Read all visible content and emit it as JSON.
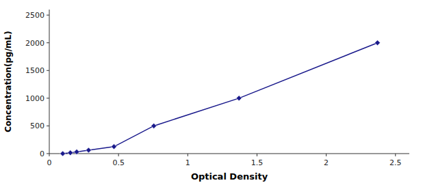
{
  "chart_data": {
    "type": "line",
    "x_label": "Optical Density",
    "y_label": "Concentration(pg/mL)",
    "x": [
      0.097,
      0.152,
      0.198,
      0.284,
      0.467,
      0.755,
      1.37,
      2.37
    ],
    "values": [
      0,
      15,
      31,
      62,
      125,
      500,
      1000,
      2000
    ],
    "color": "#1a1a8c",
    "marker": "diamond",
    "xlim": [
      0,
      2.6
    ],
    "ylim": [
      0,
      2600
    ],
    "xticks": [
      0,
      0.5,
      1,
      1.5,
      2,
      2.5
    ],
    "yticks": [
      0,
      500,
      1000,
      1500,
      2000,
      2500
    ],
    "grid": false
  }
}
